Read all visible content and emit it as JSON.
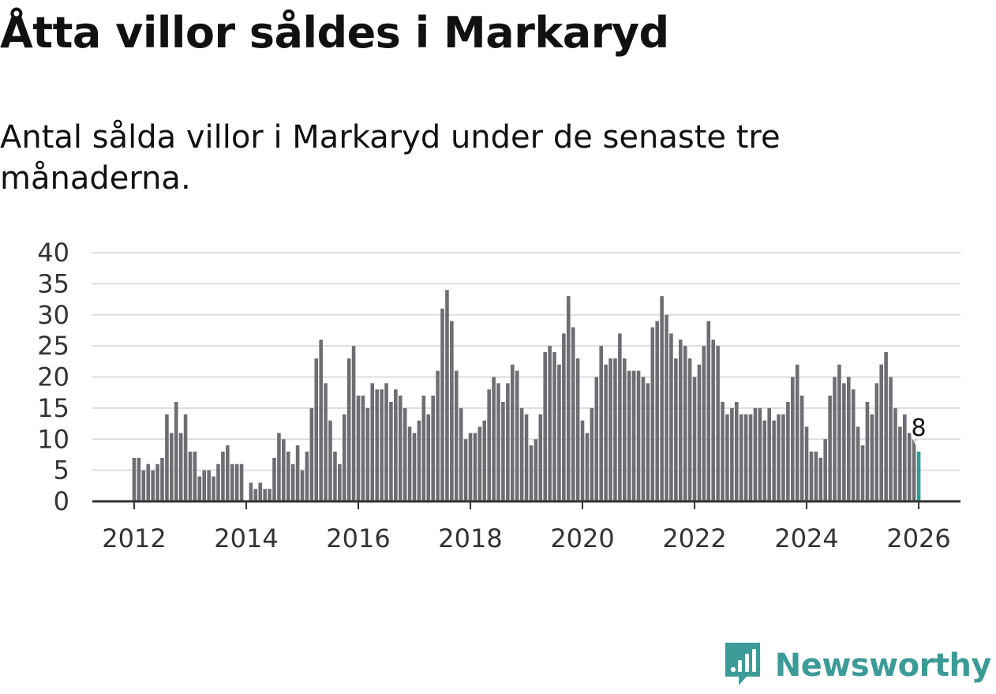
{
  "title": "Åtta villor såldes i Markaryd",
  "subtitle": "Antal sålda villor i Markaryd under de senaste tre månaderna.",
  "brand": {
    "name": "Newsworthy",
    "icon": "newsworthy-logo-icon",
    "color": "#3d9b97"
  },
  "colors": {
    "bar": "#6e6d72",
    "highlight": "#2a9d94",
    "grid": "#dddddd",
    "axis": "#333333"
  },
  "chart_data": {
    "type": "bar",
    "title": "",
    "xlabel": "",
    "ylabel": "",
    "ylim": [
      0,
      40
    ],
    "yticks": [
      "0",
      "5",
      "10",
      "15",
      "20",
      "25",
      "30",
      "35",
      "40"
    ],
    "xticks": [
      "2012",
      "2014",
      "2016",
      "2018",
      "2020",
      "2022",
      "2024",
      "2026"
    ],
    "x_start_year": 2012,
    "series": [
      {
        "name": "Antal sålda villor",
        "start": "2012-01",
        "interval": "month",
        "values": [
          7,
          7,
          5,
          6,
          5,
          6,
          7,
          14,
          11,
          16,
          11,
          14,
          8,
          8,
          4,
          5,
          5,
          4,
          6,
          8,
          9,
          6,
          6,
          6,
          0,
          3,
          2,
          3,
          2,
          2,
          7,
          11,
          10,
          8,
          6,
          9,
          5,
          8,
          15,
          23,
          26,
          19,
          13,
          8,
          6,
          14,
          23,
          25,
          17,
          17,
          15,
          19,
          18,
          18,
          19,
          16,
          18,
          17,
          15,
          12,
          11,
          13,
          17,
          14,
          17,
          21,
          31,
          34,
          29,
          21,
          15,
          10,
          11,
          11,
          12,
          13,
          18,
          20,
          19,
          16,
          19,
          22,
          21,
          15,
          14,
          9,
          10,
          14,
          24,
          25,
          24,
          22,
          27,
          33,
          28,
          23,
          13,
          11,
          15,
          20,
          25,
          22,
          23,
          23,
          27,
          23,
          21,
          21,
          21,
          20,
          19,
          28,
          29,
          33,
          30,
          27,
          23,
          26,
          25,
          23,
          20,
          22,
          25,
          29,
          26,
          25,
          16,
          14,
          15,
          16,
          14,
          14,
          14,
          15,
          15,
          13,
          15,
          13,
          14,
          14,
          16,
          20,
          22,
          17,
          12,
          8,
          8,
          7,
          10,
          17,
          20,
          22,
          19,
          20,
          18,
          12,
          9,
          16,
          14,
          19,
          22,
          24,
          20,
          15,
          12,
          14,
          11,
          10,
          8
        ]
      }
    ],
    "last_value_label": "8"
  }
}
